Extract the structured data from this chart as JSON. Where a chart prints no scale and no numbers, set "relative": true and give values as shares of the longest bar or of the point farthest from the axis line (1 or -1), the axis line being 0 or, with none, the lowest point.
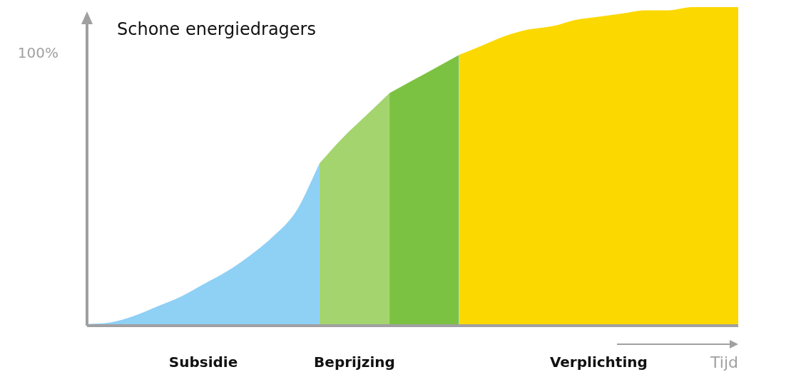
{
  "chart_data": {
    "type": "area",
    "title": "Schone energiedragers",
    "xlabel": "Tijd",
    "relative": true,
    "annotations": [
      "100%"
    ],
    "categories": [
      null,
      null,
      null,
      null,
      null,
      null,
      null,
      null,
      null,
      null,
      null,
      null,
      null,
      null,
      null,
      null,
      null,
      null,
      null,
      null,
      null,
      null,
      null,
      null,
      null,
      null,
      null,
      null,
      null
    ],
    "series": [
      {
        "name": "Subsidie",
        "color": "#8fd0f5",
        "values": [
          0.005,
          0.01,
          0.03,
          0.06,
          0.09,
          0.13,
          0.17,
          0.22,
          0.28,
          0.36,
          0.51,
          null,
          null,
          null,
          null,
          null,
          null,
          null,
          null,
          null,
          null,
          null,
          null,
          null,
          null,
          null,
          null,
          null,
          null
        ]
      },
      {
        "name": "Beprijzing",
        "color": "#a3d46e",
        "values": [
          null,
          null,
          null,
          null,
          null,
          null,
          null,
          null,
          null,
          null,
          0.51,
          0.59,
          0.66,
          0.73,
          null,
          null,
          null,
          null,
          null,
          null,
          null,
          null,
          null,
          null,
          null,
          null,
          null,
          null,
          null
        ]
      },
      {
        "color": "#7cc242",
        "values": [
          null,
          null,
          null,
          null,
          null,
          null,
          null,
          null,
          null,
          null,
          null,
          null,
          null,
          0.73,
          0.77,
          0.81,
          0.85,
          null,
          null,
          null,
          null,
          null,
          null,
          null,
          null,
          null,
          null,
          null,
          null
        ]
      },
      {
        "name": "Verplichting",
        "color": "#fbd800",
        "values": [
          null,
          null,
          null,
          null,
          null,
          null,
          null,
          null,
          null,
          null,
          null,
          null,
          null,
          null,
          null,
          null,
          0.85,
          0.88,
          0.91,
          0.93,
          0.94,
          0.96,
          0.97,
          0.98,
          0.99,
          0.99,
          1,
          1,
          1
        ]
      }
    ]
  }
}
